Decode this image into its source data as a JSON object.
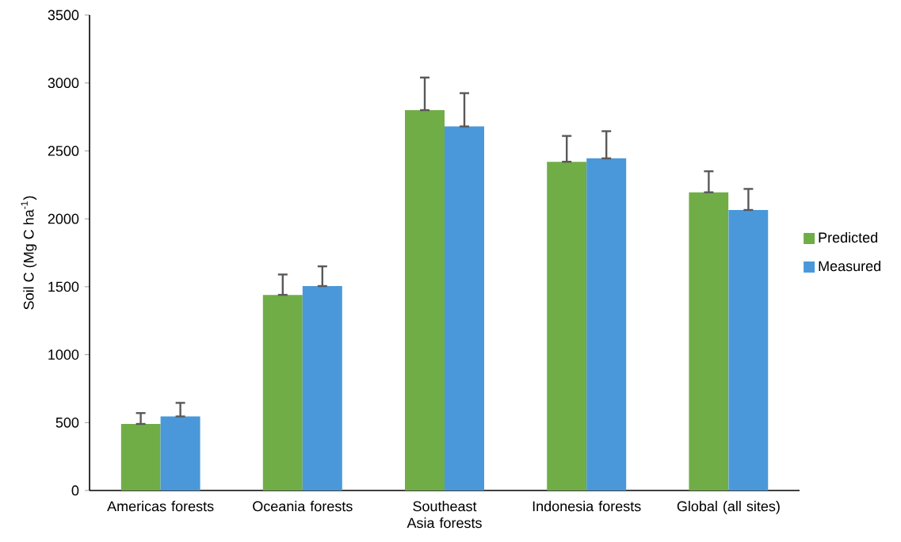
{
  "chart_data": {
    "type": "bar",
    "ylabel": "Soil C (Mg C ha$^{-1}$)",
    "categories": [
      "Americas forests",
      "Oceania forests",
      "Southeast Asia forests",
      "Indonesia forests",
      "Global (all sites)"
    ],
    "series": [
      {
        "name": "Predicted",
        "color": "#70ad47",
        "values": [
          490,
          1440,
          2800,
          2420,
          2195
        ],
        "errors": [
          [
            490,
            570
          ],
          [
            1440,
            1590
          ],
          [
            2800,
            3040
          ],
          [
            2420,
            2610
          ],
          [
            2195,
            2350
          ]
        ]
      },
      {
        "name": "Measured",
        "color": "#4a98d9",
        "values": [
          545,
          1505,
          2680,
          2445,
          2065
        ],
        "errors": [
          [
            545,
            645
          ],
          [
            1505,
            1650
          ],
          [
            2680,
            2925
          ],
          [
            2445,
            2645
          ],
          [
            2065,
            2220
          ]
        ]
      }
    ],
    "ylim": [
      0,
      3500
    ],
    "yticks": [
      0,
      500,
      1000,
      1500,
      2000,
      2500,
      3000,
      3500
    ],
    "grid": false,
    "legend": "right"
  }
}
